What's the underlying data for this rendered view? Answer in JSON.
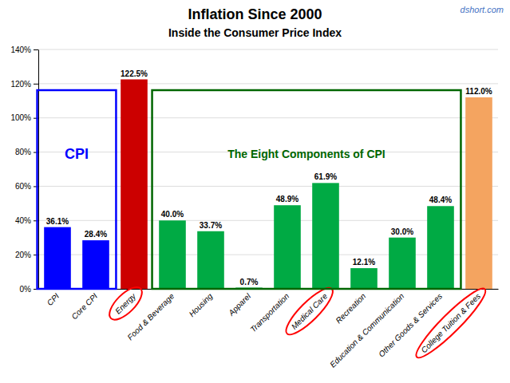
{
  "chart_data": {
    "type": "bar",
    "title": "Inflation Since 2000",
    "subtitle": "Inside the Consumer Price Index",
    "categories": [
      "CPI",
      "Core CPI",
      "Energy",
      "Food & Beverage",
      "Housing",
      "Apparel",
      "Transportation",
      "Medical Care",
      "Recreation",
      "Education & Communication",
      "Other Goods & Services",
      "College Tuition & Fees"
    ],
    "values": [
      36.1,
      28.4,
      122.5,
      40.0,
      33.7,
      0.7,
      48.9,
      61.9,
      12.1,
      30.0,
      48.4,
      112.0
    ],
    "value_labels": [
      "36.1%",
      "28.4%",
      "122.5%",
      "40.0%",
      "33.7%",
      "0.7%",
      "48.9%",
      "61.9%",
      "12.1%",
      "30.0%",
      "48.4%",
      "112.0%"
    ],
    "colors": [
      "#0000FF",
      "#0000FF",
      "#CC0000",
      "#00AA44",
      "#00AA44",
      "#00AA44",
      "#00AA44",
      "#00AA44",
      "#00AA44",
      "#00AA44",
      "#00AA44",
      "#F4A460"
    ],
    "data_labels": true,
    "ylim": [
      0,
      140
    ],
    "yticks": [
      {
        "value": 0,
        "label": "0%"
      },
      {
        "value": 20,
        "label": "20%"
      },
      {
        "value": 40,
        "label": "40%"
      },
      {
        "value": 60,
        "label": "60%"
      },
      {
        "value": 80,
        "label": "80%"
      },
      {
        "value": 100,
        "label": "100%"
      },
      {
        "value": 120,
        "label": "120%"
      },
      {
        "value": 140,
        "label": "140%"
      }
    ],
    "grid": true,
    "annotations": [
      {
        "type": "box",
        "text": "CPI",
        "from": "CPI",
        "to": "Core CPI",
        "color": "#0000FF"
      },
      {
        "type": "box",
        "text": "The Eight Components of CPI",
        "from": "Food & Beverage",
        "to": "Other Goods & Services",
        "color": "#006600"
      },
      {
        "type": "circle",
        "category": "Energy",
        "color": "#FF0000"
      },
      {
        "type": "circle",
        "category": "Medical Care",
        "color": "#FF0000"
      },
      {
        "type": "circle",
        "category": "College Tuition & Fees",
        "color": "#FF0000"
      },
      {
        "type": "text",
        "text": "dshort.com",
        "color": "#4472C4"
      }
    ]
  }
}
